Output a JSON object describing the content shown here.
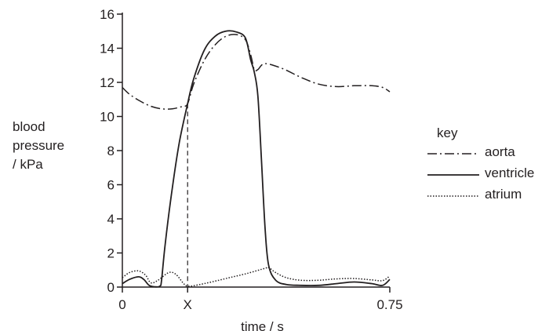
{
  "chart_data": {
    "type": "line",
    "xlabel": "time / s",
    "ylabel_lines": [
      "blood",
      "pressure",
      "/ kPa"
    ],
    "xlim": [
      0,
      0.75
    ],
    "ylim": [
      0,
      16
    ],
    "y_ticks": [
      0,
      2,
      4,
      6,
      8,
      10,
      12,
      14,
      16
    ],
    "x_ticks": [
      {
        "value": 0,
        "label": "0"
      },
      {
        "value": 0.183,
        "label": "X"
      },
      {
        "value": 0.75,
        "label": "0.75"
      }
    ],
    "marker_line": {
      "x": 0.183,
      "label": "X",
      "style": "dashed"
    },
    "legend": {
      "title": "key",
      "position": "right"
    },
    "series": [
      {
        "name": "aorta",
        "style": "dash-dot",
        "points": [
          [
            0,
            11.7
          ],
          [
            0.02,
            11.3
          ],
          [
            0.05,
            10.9
          ],
          [
            0.08,
            10.6
          ],
          [
            0.11,
            10.45
          ],
          [
            0.14,
            10.45
          ],
          [
            0.17,
            10.6
          ],
          [
            0.183,
            10.75
          ],
          [
            0.2,
            11.9
          ],
          [
            0.23,
            13.3
          ],
          [
            0.26,
            14.2
          ],
          [
            0.29,
            14.7
          ],
          [
            0.32,
            14.8
          ],
          [
            0.345,
            14.5
          ],
          [
            0.36,
            13.6
          ],
          [
            0.37,
            12.75
          ],
          [
            0.38,
            12.75
          ],
          [
            0.4,
            13.1
          ],
          [
            0.45,
            12.8
          ],
          [
            0.5,
            12.3
          ],
          [
            0.55,
            11.9
          ],
          [
            0.6,
            11.75
          ],
          [
            0.65,
            11.8
          ],
          [
            0.7,
            11.8
          ],
          [
            0.73,
            11.7
          ],
          [
            0.75,
            11.45
          ]
        ]
      },
      {
        "name": "ventricle",
        "style": "solid",
        "points": [
          [
            0,
            0.2
          ],
          [
            0.02,
            0.45
          ],
          [
            0.045,
            0.6
          ],
          [
            0.06,
            0.45
          ],
          [
            0.075,
            0.1
          ],
          [
            0.09,
            0.02
          ],
          [
            0.105,
            0.05
          ],
          [
            0.11,
            0.4
          ],
          [
            0.12,
            2.5
          ],
          [
            0.14,
            5.8
          ],
          [
            0.16,
            8.5
          ],
          [
            0.183,
            10.75
          ],
          [
            0.2,
            12.2
          ],
          [
            0.23,
            13.9
          ],
          [
            0.26,
            14.7
          ],
          [
            0.29,
            15.0
          ],
          [
            0.32,
            14.95
          ],
          [
            0.345,
            14.6
          ],
          [
            0.36,
            13.3
          ],
          [
            0.37,
            12.6
          ],
          [
            0.38,
            11.2
          ],
          [
            0.39,
            7.5
          ],
          [
            0.4,
            3.5
          ],
          [
            0.41,
            1.3
          ],
          [
            0.43,
            0.4
          ],
          [
            0.46,
            0.15
          ],
          [
            0.5,
            0.1
          ],
          [
            0.55,
            0.1
          ],
          [
            0.6,
            0.2
          ],
          [
            0.65,
            0.3
          ],
          [
            0.7,
            0.2
          ],
          [
            0.73,
            0.1
          ],
          [
            0.75,
            0.45
          ]
        ]
      },
      {
        "name": "atrium",
        "style": "dotted",
        "points": [
          [
            0,
            0.55
          ],
          [
            0.02,
            0.85
          ],
          [
            0.045,
            0.95
          ],
          [
            0.065,
            0.7
          ],
          [
            0.08,
            0.25
          ],
          [
            0.1,
            0.4
          ],
          [
            0.13,
            0.85
          ],
          [
            0.15,
            0.75
          ],
          [
            0.17,
            0.25
          ],
          [
            0.183,
            0.05
          ],
          [
            0.21,
            0.12
          ],
          [
            0.25,
            0.3
          ],
          [
            0.3,
            0.55
          ],
          [
            0.35,
            0.8
          ],
          [
            0.4,
            1.1
          ],
          [
            0.41,
            1.15
          ],
          [
            0.43,
            0.85
          ],
          [
            0.46,
            0.55
          ],
          [
            0.5,
            0.4
          ],
          [
            0.55,
            0.4
          ],
          [
            0.6,
            0.48
          ],
          [
            0.65,
            0.5
          ],
          [
            0.7,
            0.42
          ],
          [
            0.73,
            0.38
          ],
          [
            0.75,
            0.65
          ]
        ]
      }
    ]
  }
}
